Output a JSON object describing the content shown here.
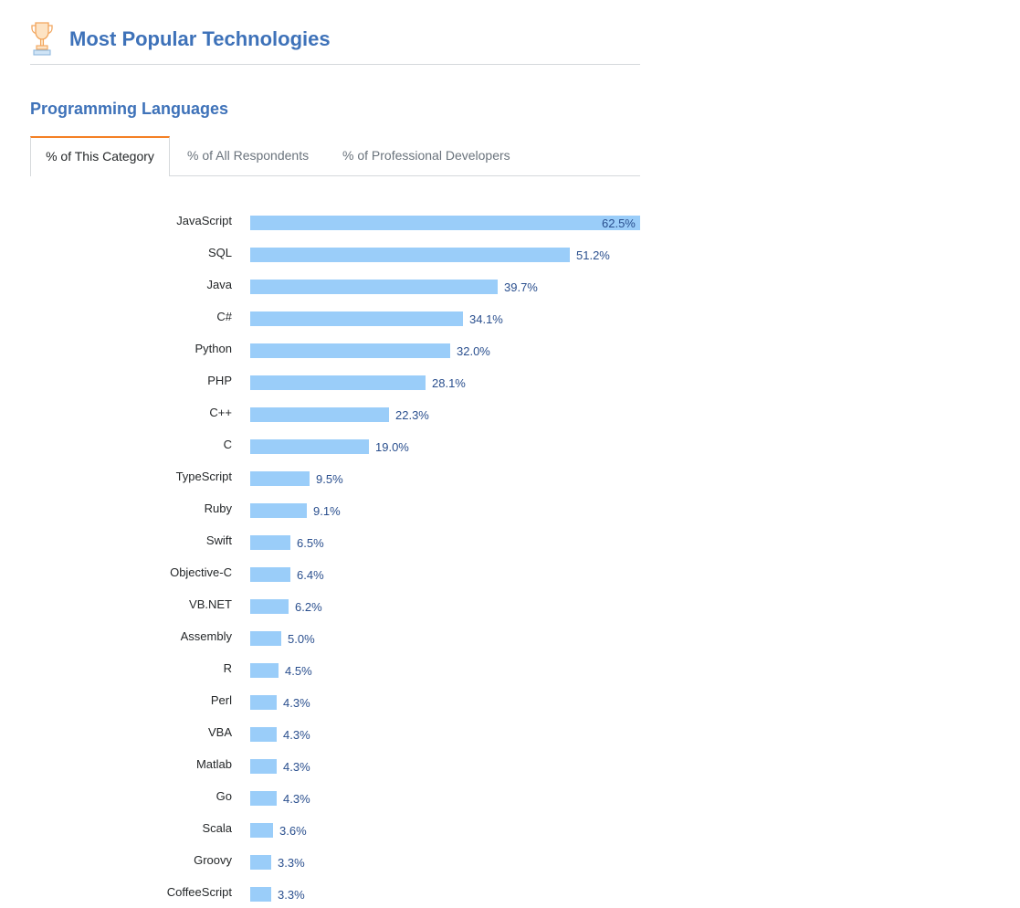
{
  "header": {
    "title": "Most Popular Technologies",
    "icon": "trophy-icon"
  },
  "section": {
    "title": "Programming Languages"
  },
  "tabs": [
    {
      "label": "% of This Category",
      "active": true
    },
    {
      "label": "% of All Respondents",
      "active": false
    },
    {
      "label": "% of Professional Developers",
      "active": false
    }
  ],
  "colors": {
    "title": "#3e72b9",
    "bar": "#9acdf9",
    "value": "#2a4f8e",
    "active_tab_accent": "#f48024"
  },
  "chart_data": {
    "type": "bar",
    "orientation": "horizontal",
    "categories": [
      "JavaScript",
      "SQL",
      "Java",
      "C#",
      "Python",
      "PHP",
      "C++",
      "C",
      "TypeScript",
      "Ruby",
      "Swift",
      "Objective-C",
      "VB.NET",
      "Assembly",
      "R",
      "Perl",
      "VBA",
      "Matlab",
      "Go",
      "Scala",
      "Groovy",
      "CoffeeScript"
    ],
    "values": [
      62.5,
      51.2,
      39.7,
      34.1,
      32.0,
      28.1,
      22.3,
      19.0,
      9.5,
      9.1,
      6.5,
      6.4,
      6.2,
      5.0,
      4.5,
      4.3,
      4.3,
      4.3,
      4.3,
      3.6,
      3.3,
      3.3
    ],
    "value_labels": [
      "62.5%",
      "51.2%",
      "39.7%",
      "34.1%",
      "32.0%",
      "28.1%",
      "22.3%",
      "19.0%",
      "9.5%",
      "9.1%",
      "6.5%",
      "6.4%",
      "6.2%",
      "5.0%",
      "4.5%",
      "4.3%",
      "4.3%",
      "4.3%",
      "4.3%",
      "3.6%",
      "3.3%",
      "3.3%"
    ],
    "xlim": [
      0,
      62.5
    ],
    "grid": false
  }
}
